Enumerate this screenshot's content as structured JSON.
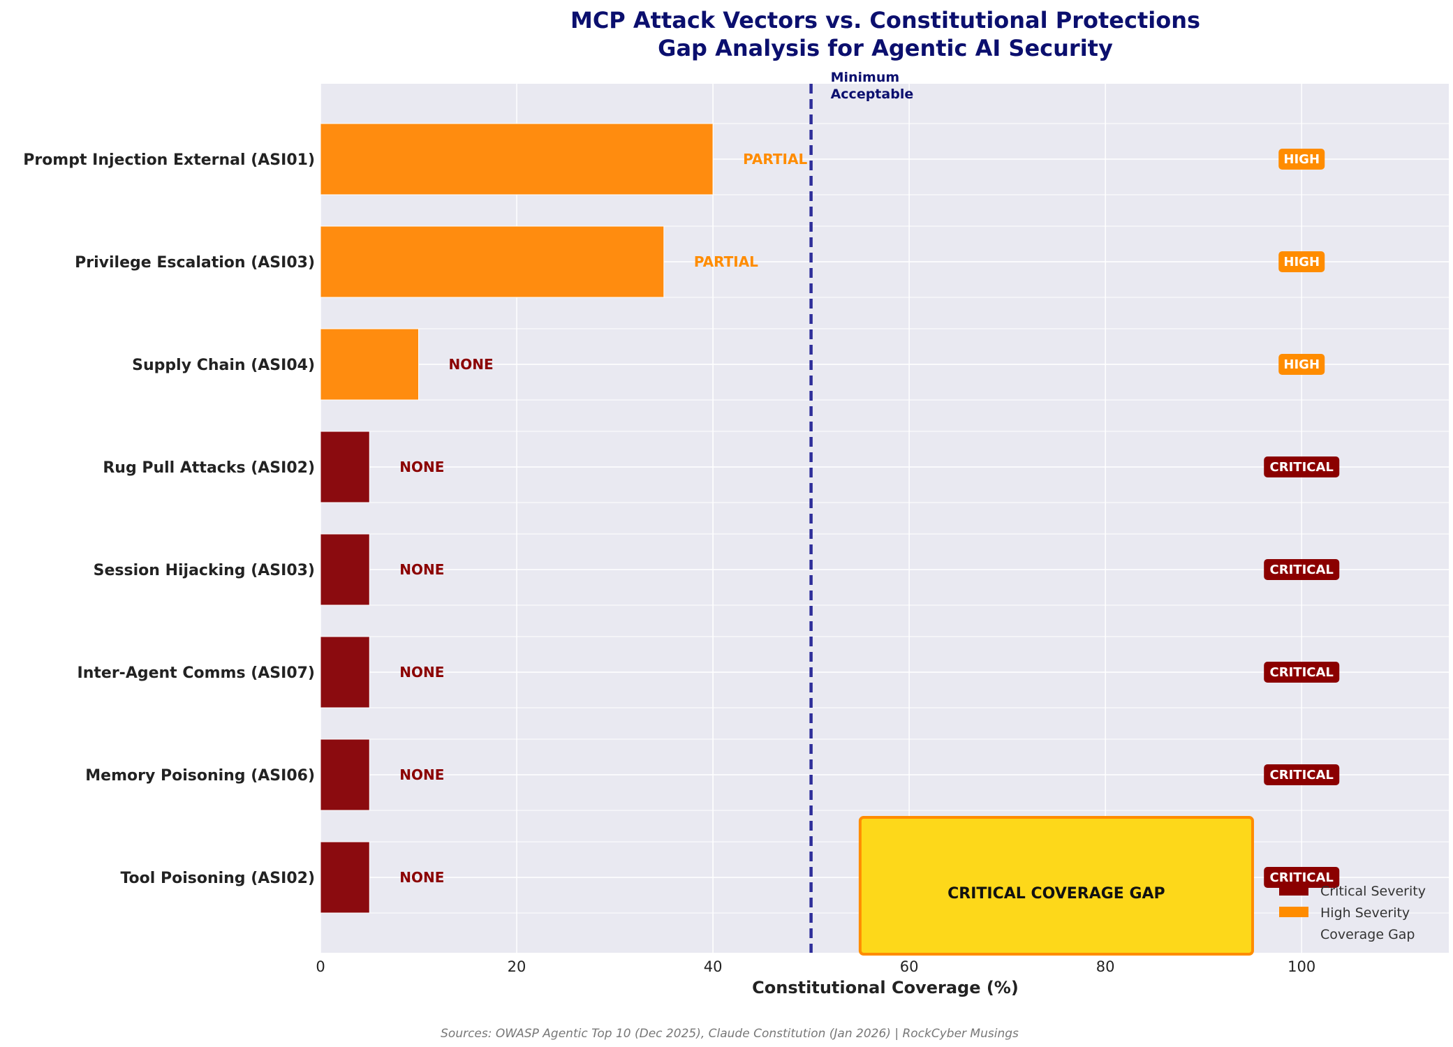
{
  "chart_data": {
    "type": "bar",
    "orientation": "horizontal",
    "title": "MCP Attack Vectors vs. Constitutional Protections",
    "subtitle": "Gap Analysis for Agentic AI Security",
    "xlabel": "Constitutional Coverage (%)",
    "ylabel": "",
    "xlim": [
      0,
      115
    ],
    "xticks": [
      0,
      20,
      40,
      60,
      80,
      100
    ],
    "grid": true,
    "categories": [
      "Prompt Injection External (ASI01)",
      "Privilege Escalation (ASI03)",
      "Supply Chain (ASI04)",
      "Rug Pull Attacks (ASI02)",
      "Session Hijacking (ASI03)",
      "Inter-Agent Comms (ASI07)",
      "Memory Poisoning (ASI06)",
      "Tool Poisoning (ASI02)"
    ],
    "values": [
      40,
      35,
      10,
      5,
      5,
      5,
      5,
      5
    ],
    "status_labels": [
      "PARTIAL",
      "PARTIAL",
      "NONE",
      "NONE",
      "NONE",
      "NONE",
      "NONE",
      "NONE"
    ],
    "severity": [
      "HIGH",
      "HIGH",
      "HIGH",
      "CRITICAL",
      "CRITICAL",
      "CRITICAL",
      "CRITICAL",
      "CRITICAL"
    ],
    "threshold": {
      "value": 50,
      "label_line1": "Minimum",
      "label_line2": "Acceptable"
    },
    "gap_region": {
      "label": "CRITICAL COVERAGE GAP",
      "x_start": 55,
      "x_end": 95
    },
    "legend": {
      "position": "bottom-right",
      "entries": [
        {
          "name": "Critical Severity",
          "color": "#8b0000"
        },
        {
          "name": "High Severity",
          "color": "#ff8c00"
        },
        {
          "name": "Coverage Gap",
          "color": ""
        }
      ]
    },
    "source": "Sources: OWASP Agentic Top 10 (Dec 2025), Claude Constitution (Jan 2026) | RockCyber Musings"
  },
  "colors": {
    "critical": "#8b0b0f",
    "critical_badge": "#8b0000",
    "critical_text": "#8b0000",
    "high": "#ff8c0f",
    "high_text": "#ff8c00",
    "gap_fill": "#fdd81a",
    "gap_edge": "#ff8c00",
    "plot_bg": "#e9e9f1",
    "threshold": "#2e2e9a"
  }
}
